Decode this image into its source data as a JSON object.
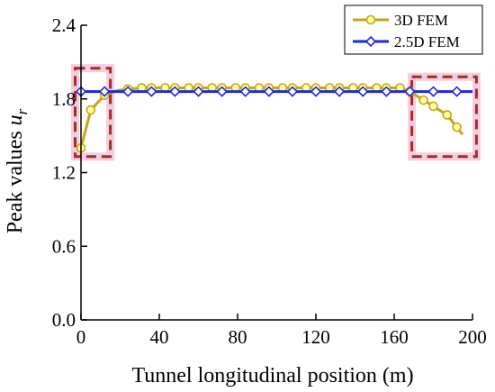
{
  "chart_data": {
    "type": "line",
    "xlabel": "Tunnel longitudinal position (m)",
    "ylabel": "Peak values ",
    "ylabel_symbol": "u",
    "ylabel_subscript": "r",
    "xlim": [
      0,
      200
    ],
    "ylim": [
      0,
      2.4
    ],
    "x_ticks": [
      0,
      40,
      80,
      120,
      160,
      200
    ],
    "y_ticks": [
      0.0,
      0.6,
      1.2,
      1.8,
      2.4
    ],
    "x_tick_labels": [
      "0",
      "40",
      "80",
      "120",
      "160",
      "200"
    ],
    "y_tick_labels": [
      "0.0",
      "0.6",
      "1.2",
      "1.8",
      "2.4"
    ],
    "grid": false,
    "legend_position": "top-right",
    "series": [
      {
        "name": "3D FEM",
        "color": "#c8a41a",
        "marker": "circle",
        "x": [
          0,
          5,
          12,
          19,
          24,
          31,
          36,
          43,
          48,
          55,
          60,
          67,
          72,
          79,
          84,
          91,
          96,
          103,
          108,
          115,
          120,
          127,
          132,
          139,
          144,
          151,
          156,
          163,
          168,
          175,
          180,
          187,
          192,
          195
        ],
        "y": [
          1.4,
          1.71,
          1.83,
          1.87,
          1.88,
          1.89,
          1.89,
          1.89,
          1.89,
          1.89,
          1.89,
          1.89,
          1.89,
          1.89,
          1.89,
          1.89,
          1.89,
          1.89,
          1.89,
          1.89,
          1.89,
          1.89,
          1.89,
          1.89,
          1.89,
          1.89,
          1.89,
          1.89,
          1.86,
          1.79,
          1.74,
          1.67,
          1.57,
          1.51
        ],
        "marker_x": [
          0,
          5,
          12,
          24,
          31,
          36,
          43,
          48,
          55,
          60,
          67,
          72,
          79,
          84,
          91,
          96,
          103,
          108,
          115,
          120,
          127,
          132,
          139,
          144,
          151,
          156,
          163,
          168,
          175,
          180,
          187,
          192
        ],
        "marker_y": [
          1.4,
          1.71,
          1.83,
          1.88,
          1.89,
          1.89,
          1.89,
          1.89,
          1.89,
          1.89,
          1.89,
          1.89,
          1.89,
          1.89,
          1.89,
          1.89,
          1.89,
          1.89,
          1.89,
          1.89,
          1.89,
          1.89,
          1.89,
          1.89,
          1.89,
          1.89,
          1.89,
          1.86,
          1.79,
          1.74,
          1.67,
          1.57
        ]
      },
      {
        "name": "2.5D FEM",
        "color": "#1d2bd4",
        "marker": "diamond",
        "x": [
          0,
          200
        ],
        "y": [
          1.86,
          1.86
        ],
        "marker_x": [
          0,
          12,
          24,
          36,
          48,
          60,
          72,
          84,
          96,
          108,
          120,
          132,
          144,
          156,
          168,
          180,
          192
        ],
        "marker_y": [
          1.86,
          1.86,
          1.86,
          1.86,
          1.86,
          1.86,
          1.86,
          1.86,
          1.86,
          1.86,
          1.86,
          1.86,
          1.86,
          1.86,
          1.86,
          1.86,
          1.86
        ]
      }
    ],
    "highlight_boxes": [
      {
        "x0": -3,
        "x1": 15,
        "y0": 1.33,
        "y1": 2.05,
        "color": "#a52a2a"
      },
      {
        "x0": 169,
        "x1": 202,
        "y0": 1.33,
        "y1": 1.98,
        "color": "#a52a2a"
      }
    ]
  }
}
